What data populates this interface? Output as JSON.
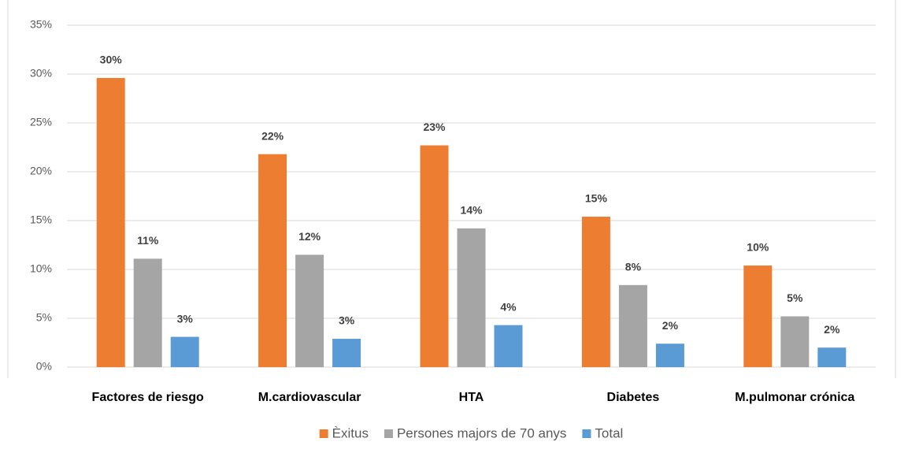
{
  "chart_data": {
    "type": "bar",
    "categories": [
      "Factores de riesgo",
      "M.cardiovascular",
      "HTA",
      "Diabetes",
      "M.pulmonar crónica"
    ],
    "series": [
      {
        "name": "Èxitus",
        "color": "#ed7d31",
        "values": [
          29.6,
          21.8,
          22.7,
          15.4,
          10.4
        ],
        "value_labels": [
          "30%",
          "22%",
          "23%",
          "15%",
          "10%"
        ]
      },
      {
        "name": "Persones majors de 70 anys",
        "color": "#a5a5a5",
        "values": [
          11.1,
          11.5,
          14.2,
          8.4,
          5.2
        ],
        "value_labels": [
          "11%",
          "12%",
          "14%",
          "8%",
          "5%"
        ]
      },
      {
        "name": "Total",
        "color": "#5b9bd5",
        "values": [
          3.1,
          2.9,
          4.3,
          2.4,
          2.0
        ],
        "value_labels": [
          "3%",
          "3%",
          "4%",
          "2%",
          "2%"
        ]
      }
    ],
    "ylim": [
      0,
      35
    ],
    "yticks": [
      {
        "value": 0,
        "label": "0%"
      },
      {
        "value": 5,
        "label": "5%"
      },
      {
        "value": 10,
        "label": "10%"
      },
      {
        "value": 15,
        "label": "15%"
      },
      {
        "value": 20,
        "label": "20%"
      },
      {
        "value": 25,
        "label": "25%"
      },
      {
        "value": 30,
        "label": "30%"
      },
      {
        "value": 35,
        "label": "35%"
      }
    ],
    "grid": true
  }
}
